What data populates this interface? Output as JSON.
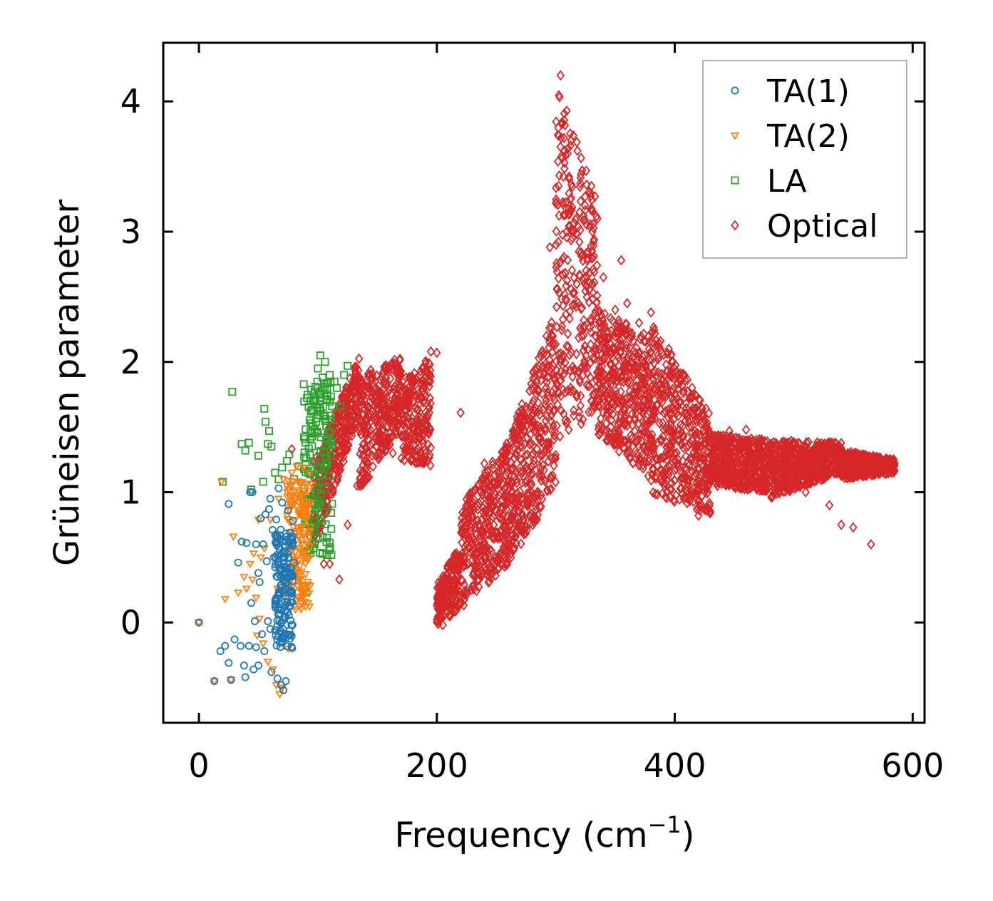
{
  "chart_data": {
    "type": "scatter",
    "title": "",
    "xlabel": "Frequency (cm",
    "xlabel_sup": "−1",
    "xlabel_close": ")",
    "ylabel": "Grüneisen parameter",
    "xlim": [
      -30,
      610
    ],
    "ylim": [
      -0.77,
      4.45
    ],
    "xticks": [
      0,
      200,
      400,
      600
    ],
    "yticks": [
      0,
      1,
      2,
      3,
      4
    ],
    "xtick_labels": [
      "0",
      "200",
      "400",
      "600"
    ],
    "ytick_labels": [
      "0",
      "1",
      "2",
      "3",
      "4"
    ],
    "grid": false,
    "legend_position": "top-right",
    "series": [
      {
        "name": "TA(1)",
        "marker": "circle",
        "color": "#1f77b4",
        "points": [
          [
            0,
            0
          ],
          [
            13,
            -0.45
          ],
          [
            18,
            -0.22
          ],
          [
            22,
            -0.18
          ],
          [
            25,
            0.91
          ],
          [
            25,
            -0.31
          ],
          [
            27,
            -0.44
          ],
          [
            30,
            -0.13
          ],
          [
            33,
            0.46
          ],
          [
            35,
            -0.18
          ],
          [
            36,
            0.62
          ],
          [
            38,
            -0.33
          ],
          [
            39,
            -0.42
          ],
          [
            40,
            0.61
          ],
          [
            42,
            -0.18
          ],
          [
            43,
            1.0
          ],
          [
            44,
            0.15
          ],
          [
            45,
            1.0
          ],
          [
            46,
            -0.36
          ],
          [
            47,
            0.01
          ],
          [
            48,
            -0.19
          ],
          [
            48,
            0.6
          ],
          [
            50,
            -0.33
          ],
          [
            50,
            0.38
          ],
          [
            51,
            0.31
          ],
          [
            52,
            0.8
          ],
          [
            53,
            -0.09
          ],
          [
            54,
            0.6
          ],
          [
            55,
            -0.22
          ],
          [
            56,
            0.83
          ],
          [
            57,
            0.47
          ],
          [
            58,
            0.01
          ],
          [
            59,
            0.87
          ],
          [
            60,
            -0.05
          ],
          [
            60,
            0.95
          ],
          [
            61,
            -0.38
          ],
          [
            62,
            0.71
          ],
          [
            63,
            0.5
          ],
          [
            64,
            -0.06
          ],
          [
            65,
            0.79
          ],
          [
            66,
            0.35
          ],
          [
            66,
            -0.43
          ],
          [
            67,
            1.03
          ],
          [
            68,
            0.64
          ],
          [
            69,
            -0.48
          ],
          [
            70,
            0.92
          ],
          [
            71,
            -0.52
          ],
          [
            72,
            0.5
          ],
          [
            73,
            -0.45
          ],
          [
            75,
            0.86
          ],
          [
            76,
            0.12
          ],
          [
            77,
            0.65
          ],
          [
            78,
            0.2
          ],
          [
            79,
            0.78
          ],
          [
            80,
            0.46
          ]
        ],
        "cloud": {
          "x_range": [
            64,
            79
          ],
          "y_range": [
            -0.2,
            0.75
          ]
        }
      },
      {
        "name": "TA(2)",
        "marker": "triangle-down",
        "color": "#ff7f0e",
        "points": [
          [
            0,
            0
          ],
          [
            13,
            -0.45
          ],
          [
            19,
            1.08
          ],
          [
            22,
            0.18
          ],
          [
            27,
            -0.44
          ],
          [
            29,
            0.66
          ],
          [
            33,
            0.23
          ],
          [
            38,
            0.35
          ],
          [
            40,
            0.26
          ],
          [
            43,
            0.45
          ],
          [
            45,
            0.33
          ],
          [
            46,
            0.53
          ],
          [
            48,
            0.19
          ],
          [
            49,
            -0.1
          ],
          [
            50,
            0.79
          ],
          [
            51,
            0.03
          ],
          [
            52,
            0.5
          ],
          [
            54,
            -0.16
          ],
          [
            55,
            0.57
          ],
          [
            58,
            -0.3
          ],
          [
            60,
            0.79
          ],
          [
            62,
            -0.36
          ],
          [
            64,
            0.65
          ],
          [
            65,
            -0.48
          ],
          [
            66,
            0.26
          ],
          [
            67,
            0.95
          ],
          [
            68,
            -0.55
          ],
          [
            70,
            -0.5
          ],
          [
            71,
            1.1
          ],
          [
            72,
            0.2
          ],
          [
            74,
            1.05
          ],
          [
            75,
            -0.2
          ],
          [
            76,
            0.86
          ],
          [
            78,
            1.15
          ],
          [
            80,
            1.0
          ],
          [
            82,
            1.2
          ],
          [
            84,
            0.35
          ],
          [
            86,
            0.93
          ],
          [
            88,
            1.19
          ],
          [
            90,
            0.8
          ],
          [
            93,
            1.15
          ],
          [
            95,
            1.06
          ]
        ],
        "cloud": {
          "x_range": [
            74,
            94
          ],
          "y_range": [
            0.1,
            1.1
          ]
        }
      },
      {
        "name": "LA",
        "marker": "square",
        "color": "#2ca02c",
        "points": [
          [
            20,
            1.08
          ],
          [
            28,
            1.77
          ],
          [
            36,
            1.37
          ],
          [
            39,
            1.32
          ],
          [
            42,
            1.38
          ],
          [
            44,
            1.02
          ],
          [
            50,
            1.28
          ],
          [
            54,
            1.08
          ],
          [
            55,
            1.64
          ],
          [
            56,
            1.54
          ],
          [
            58,
            1.37
          ],
          [
            59,
            1.47
          ],
          [
            61,
            1.35
          ],
          [
            64,
            1.15
          ],
          [
            67,
            1.1
          ],
          [
            70,
            1.19
          ],
          [
            74,
            1.24
          ],
          [
            76,
            1.29
          ],
          [
            80,
            1.1
          ],
          [
            84,
            1.2
          ],
          [
            88,
            0.25
          ],
          [
            90,
            0.23
          ],
          [
            92,
            1.15
          ],
          [
            94,
            1.62
          ],
          [
            96,
            1.7
          ],
          [
            98,
            1.81
          ],
          [
            100,
            1.95
          ],
          [
            102,
            2.05
          ],
          [
            104,
            1.88
          ],
          [
            106,
            2.0
          ],
          [
            108,
            1.74
          ],
          [
            110,
            1.9
          ],
          [
            112,
            1.66
          ],
          [
            114,
            1.85
          ],
          [
            116,
            1.8
          ],
          [
            119,
            1.66
          ],
          [
            122,
            1.9
          ],
          [
            125,
            1.97
          ]
        ],
        "cloud": {
          "x_range": [
            88,
            112
          ],
          "y_range": [
            0.5,
            1.85
          ]
        }
      },
      {
        "name": "Optical",
        "marker": "diamond",
        "color": "#d62728",
        "points": [
          [
            78,
            1.33
          ],
          [
            105,
            0.45
          ],
          [
            110,
            0.45
          ],
          [
            118,
            0.33
          ],
          [
            125,
            0.75
          ],
          [
            133,
            1.05
          ],
          [
            150,
            1.57
          ],
          [
            163,
            1.3
          ],
          [
            195,
            2.08
          ],
          [
            200,
            2.07
          ],
          [
            203,
            0.05
          ],
          [
            205,
            -0.02
          ],
          [
            220,
            1.61
          ],
          [
            225,
            0.6
          ],
          [
            232,
            0.35
          ],
          [
            240,
            1.22
          ],
          [
            258,
            0.9
          ],
          [
            275,
            0.73
          ],
          [
            295,
            2.88
          ],
          [
            304,
            4.2
          ],
          [
            310,
            3.6
          ],
          [
            315,
            3.0
          ],
          [
            320,
            3.15
          ],
          [
            330,
            3.35
          ],
          [
            333,
            3.27
          ],
          [
            340,
            2.65
          ],
          [
            350,
            2.4
          ],
          [
            355,
            2.78
          ],
          [
            360,
            2.45
          ],
          [
            370,
            2.3
          ],
          [
            380,
            2.38
          ],
          [
            395,
            2.1
          ],
          [
            405,
            1.85
          ],
          [
            420,
            0.82
          ],
          [
            430,
            0.85
          ],
          [
            440,
            1.35
          ],
          [
            446,
            1.47
          ],
          [
            455,
            1.4
          ],
          [
            460,
            1.48
          ],
          [
            470,
            1.35
          ],
          [
            480,
            1.3
          ],
          [
            500,
            1.37
          ],
          [
            510,
            1.0
          ],
          [
            520,
            1.1
          ],
          [
            530,
            0.9
          ],
          [
            540,
            0.75
          ],
          [
            550,
            0.73
          ],
          [
            565,
            0.6
          ],
          [
            582,
            1.23
          ]
        ],
        "bands": [
          {
            "x": [
              95,
              135
            ],
            "y_low": [
              0.5,
              1.6
            ],
            "y_high": [
              1.2,
              2.05
            ]
          },
          {
            "x": [
              135,
              170
            ],
            "y_low": [
              1.0,
              1.5
            ],
            "y_high": [
              1.9,
              2.05
            ]
          },
          {
            "x": [
              170,
              195
            ],
            "y_low": [
              1.25,
              1.2
            ],
            "y_high": [
              1.85,
              2.05
            ]
          },
          {
            "x": [
              200,
              220
            ],
            "y_low": [
              -0.02,
              0.1
            ],
            "y_high": [
              0.3,
              0.6
            ]
          },
          {
            "x": [
              220,
              260
            ],
            "y_low": [
              0.1,
              0.45
            ],
            "y_high": [
              0.9,
              1.4
            ]
          },
          {
            "x": [
              260,
              300
            ],
            "y_low": [
              0.45,
              1.0
            ],
            "y_high": [
              1.4,
              2.4
            ]
          },
          {
            "x": [
              300,
              335
            ],
            "y_low": [
              1.4,
              1.6
            ],
            "y_high": [
              4.2,
              3.2
            ]
          },
          {
            "x": [
              335,
              380
            ],
            "y_low": [
              1.45,
              1.1
            ],
            "y_high": [
              2.4,
              2.2
            ]
          },
          {
            "x": [
              380,
              430
            ],
            "y_low": [
              1.0,
              0.8
            ],
            "y_high": [
              2.3,
              1.6
            ]
          },
          {
            "x": [
              430,
              480
            ],
            "y_low": [
              1.05,
              1.0
            ],
            "y_high": [
              1.45,
              1.4
            ]
          },
          {
            "x": [
              480,
              540
            ],
            "y_low": [
              0.95,
              1.15
            ],
            "y_high": [
              1.4,
              1.38
            ]
          },
          {
            "x": [
              540,
              585
            ],
            "y_low": [
              1.1,
              1.15
            ],
            "y_high": [
              1.32,
              1.25
            ]
          }
        ]
      }
    ]
  }
}
